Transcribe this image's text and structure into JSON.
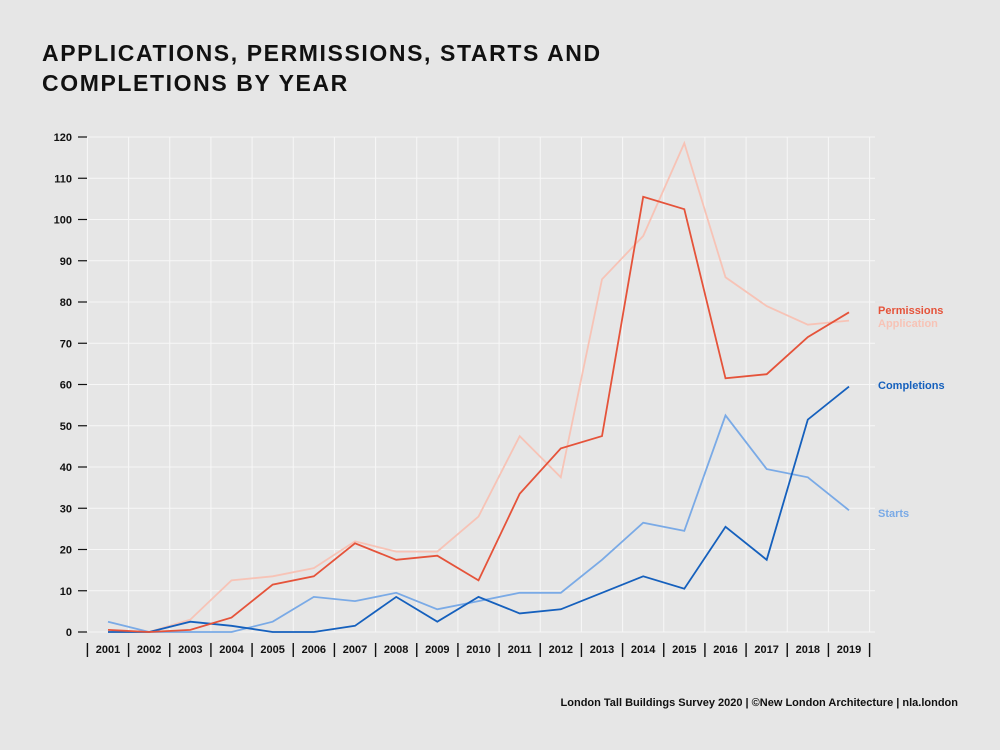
{
  "title_lines": [
    "APPLICATIONS, PERMISSIONS, STARTS AND",
    "COMPLETIONS BY YEAR"
  ],
  "footer": "London Tall Buildings Survey 2020 | ©New London Architecture | nla.london",
  "chart_data": {
    "type": "line",
    "title": "APPLICATIONS, PERMISSIONS, STARTS AND COMPLETIONS BY YEAR",
    "xlabel": "",
    "ylabel": "",
    "categories": [
      "2001",
      "2002",
      "2003",
      "2004",
      "2005",
      "2006",
      "2007",
      "2008",
      "2009",
      "2010",
      "2011",
      "2012",
      "2013",
      "2014",
      "2015",
      "2016",
      "2017",
      "2018",
      "2019"
    ],
    "ylim": [
      0,
      120
    ],
    "yticks": [
      0,
      10,
      20,
      30,
      40,
      50,
      60,
      70,
      80,
      90,
      100,
      110,
      120
    ],
    "grid": true,
    "legend": "direct labels at right end of lines",
    "series": [
      {
        "name": "Application",
        "color": "#f7c3b6",
        "values": [
          0,
          0,
          3,
          12.5,
          13.5,
          15.5,
          22,
          19.5,
          19.5,
          28,
          47.5,
          37.5,
          85.5,
          96,
          118.5,
          86,
          79,
          74.5,
          75.5
        ]
      },
      {
        "name": "Starts",
        "color": "#7aaae6",
        "values": [
          2.5,
          0,
          0,
          0,
          2.5,
          8.5,
          7.5,
          9.5,
          5.5,
          7.5,
          9.5,
          9.5,
          17.5,
          26.5,
          24.5,
          52.5,
          39.5,
          37.5,
          29.5
        ]
      },
      {
        "name": "Completions",
        "color": "#1560bd",
        "values": [
          0,
          0,
          2.5,
          1.5,
          0,
          0,
          1.5,
          8.5,
          2.5,
          8.5,
          4.5,
          5.5,
          9.5,
          13.5,
          10.5,
          25.5,
          17.5,
          51.5,
          59.5
        ]
      },
      {
        "name": "Permissions",
        "color": "#e5533a",
        "values": [
          0.5,
          0,
          0.5,
          3.5,
          11.5,
          13.5,
          21.5,
          17.5,
          18.5,
          12.5,
          33.5,
          44.5,
          47.5,
          105.5,
          102.5,
          61.5,
          62.5,
          71.5,
          77.5
        ]
      }
    ]
  }
}
